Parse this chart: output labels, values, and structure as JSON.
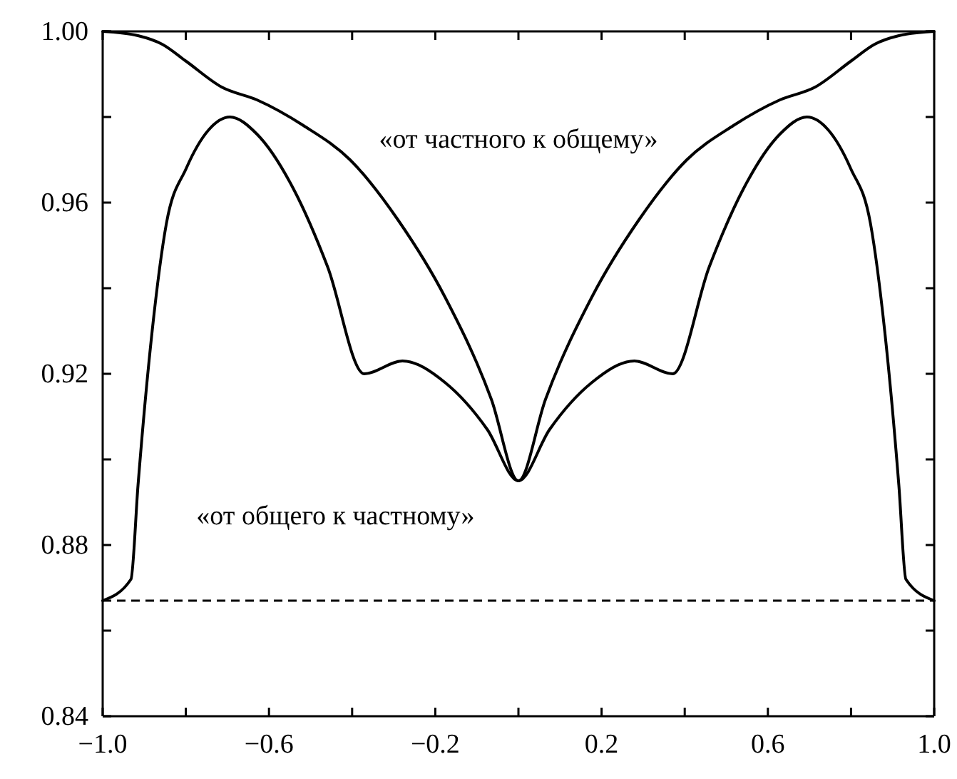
{
  "chart_data": {
    "type": "line",
    "xlim": [
      -1.0,
      1.0
    ],
    "ylim": [
      0.84,
      1.0
    ],
    "xticks": [
      {
        "value": -1.0,
        "label": "−1.0"
      },
      {
        "value": -0.8,
        "label": null
      },
      {
        "value": -0.6,
        "label": "−0.6"
      },
      {
        "value": -0.4,
        "label": null
      },
      {
        "value": -0.2,
        "label": "−0.2"
      },
      {
        "value": 0,
        "label": null
      },
      {
        "value": 0.2,
        "label": "0.2"
      },
      {
        "value": 0.4,
        "label": null
      },
      {
        "value": 0.6,
        "label": "0.6"
      },
      {
        "value": 0.8,
        "label": null
      },
      {
        "value": 1.0,
        "label": "1.0"
      }
    ],
    "yticks": [
      {
        "value": 0.84,
        "label": "0.84"
      },
      {
        "value": 0.86,
        "label": null
      },
      {
        "value": 0.88,
        "label": "0.88"
      },
      {
        "value": 0.9,
        "label": null
      },
      {
        "value": 0.92,
        "label": "0.92"
      },
      {
        "value": 0.94,
        "label": null
      },
      {
        "value": 0.96,
        "label": "0.96"
      },
      {
        "value": 0.98,
        "label": null
      },
      {
        "value": 1.0,
        "label": "1.00"
      }
    ],
    "grid": false,
    "line_style": "solid",
    "marker": "none",
    "series": [
      {
        "color": "#000000",
        "x": [
          -1.0,
          -0.915,
          -0.857,
          -0.799,
          -0.714,
          -0.629,
          -0.517,
          -0.405,
          -0.29,
          -0.177,
          -0.065,
          0,
          0.065,
          0.177,
          0.29,
          0.405,
          0.517,
          0.629,
          0.714,
          0.799,
          0.857,
          0.915,
          1.0
        ],
        "values": [
          1.0,
          0.999,
          0.997,
          0.993,
          0.987,
          0.984,
          0.978,
          0.97,
          0.956,
          0.938,
          0.914,
          0.895,
          0.914,
          0.938,
          0.956,
          0.97,
          0.978,
          0.984,
          0.987,
          0.993,
          0.997,
          0.999,
          1.0
        ]
      },
      {
        "color": "#000000",
        "x": [
          -1.0,
          -0.932,
          -0.915,
          -0.881,
          -0.847,
          -0.799,
          -0.745,
          -0.694,
          -0.629,
          -0.54,
          -0.459,
          -0.371,
          -0.279,
          -0.177,
          -0.075,
          0,
          0.075,
          0.177,
          0.279,
          0.371,
          0.459,
          0.54,
          0.629,
          0.694,
          0.745,
          0.799,
          0.847,
          0.881,
          0.915,
          0.932,
          1.0
        ],
        "values": [
          0.867,
          0.872,
          0.894,
          0.93,
          0.955,
          0.968,
          0.977,
          0.98,
          0.976,
          0.963,
          0.945,
          0.92,
          0.923,
          0.918,
          0.907,
          0.895,
          0.907,
          0.918,
          0.923,
          0.92,
          0.945,
          0.963,
          0.976,
          0.98,
          0.977,
          0.968,
          0.955,
          0.93,
          0.894,
          0.872,
          0.867
        ]
      }
    ],
    "ref_lines": [
      {
        "axis": "y",
        "value": 0.867,
        "color": "#000000",
        "line_style": "dashed"
      }
    ],
    "annotations": [
      "«от частного к общему»",
      "«от общего к частному»"
    ]
  }
}
